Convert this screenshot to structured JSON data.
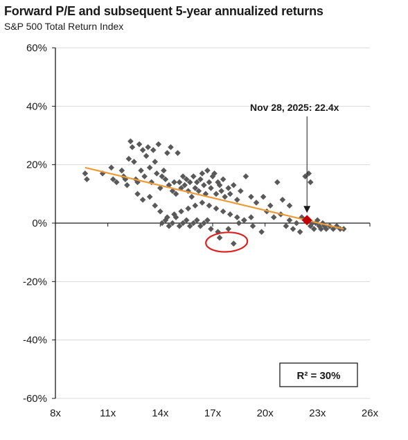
{
  "chart_data": {
    "type": "scatter",
    "title": "Forward P/E and subsequent 5-year annualized returns",
    "subtitle": "S&P 500 Total Return Index",
    "xlabel": "",
    "ylabel": "",
    "xlim": [
      8,
      26
    ],
    "ylim": [
      -60,
      60
    ],
    "x_ticks": [
      8,
      11,
      14,
      17,
      20,
      23,
      26
    ],
    "x_tick_labels": [
      "8x",
      "11x",
      "14x",
      "17x",
      "20x",
      "23x",
      "26x"
    ],
    "y_ticks": [
      60,
      40,
      20,
      0,
      -20,
      -40,
      -60
    ],
    "y_tick_labels": [
      "60%",
      "40%",
      "20%",
      "0%",
      "-20%",
      "-40%",
      "-60%"
    ],
    "grid": "horizontal",
    "series": [
      {
        "marker": "diamond",
        "color": "#595959",
        "points": [
          [
            9.7,
            17
          ],
          [
            9.8,
            15
          ],
          [
            10.7,
            17
          ],
          [
            11.2,
            19
          ],
          [
            11.3,
            15
          ],
          [
            11.5,
            14
          ],
          [
            11.8,
            18
          ],
          [
            11.9,
            16
          ],
          [
            12.0,
            15
          ],
          [
            12.1,
            13
          ],
          [
            12.2,
            22
          ],
          [
            12.3,
            28
          ],
          [
            12.4,
            26
          ],
          [
            12.5,
            21
          ],
          [
            12.6,
            15
          ],
          [
            12.7,
            14
          ],
          [
            12.8,
            27
          ],
          [
            12.9,
            18
          ],
          [
            13.0,
            25
          ],
          [
            13.1,
            16
          ],
          [
            13.2,
            23
          ],
          [
            13.3,
            26
          ],
          [
            13.4,
            19
          ],
          [
            13.5,
            14
          ],
          [
            13.6,
            25
          ],
          [
            13.7,
            21
          ],
          [
            13.8,
            17
          ],
          [
            13.9,
            27
          ],
          [
            14.0,
            12
          ],
          [
            14.1,
            16
          ],
          [
            14.2,
            18
          ],
          [
            14.3,
            15
          ],
          [
            14.4,
            24
          ],
          [
            14.5,
            13
          ],
          [
            14.6,
            26
          ],
          [
            14.7,
            11
          ],
          [
            14.8,
            14
          ],
          [
            14.9,
            10
          ],
          [
            15.0,
            24
          ],
          [
            15.1,
            14
          ],
          [
            15.2,
            12
          ],
          [
            15.3,
            16
          ],
          [
            15.4,
            13
          ],
          [
            15.5,
            15
          ],
          [
            15.6,
            11
          ],
          [
            15.7,
            14
          ],
          [
            15.8,
            9
          ],
          [
            15.9,
            16
          ],
          [
            16.0,
            12
          ],
          [
            16.1,
            14
          ],
          [
            16.2,
            11
          ],
          [
            16.3,
            15
          ],
          [
            16.4,
            17
          ],
          [
            16.5,
            13
          ],
          [
            16.6,
            10
          ],
          [
            16.7,
            18
          ],
          [
            16.8,
            14
          ],
          [
            16.9,
            12
          ],
          [
            17.0,
            16
          ],
          [
            17.1,
            17
          ],
          [
            17.2,
            10
          ],
          [
            17.3,
            14
          ],
          [
            17.4,
            13
          ],
          [
            17.5,
            11
          ],
          [
            17.6,
            15
          ],
          [
            17.7,
            9
          ],
          [
            17.9,
            12
          ],
          [
            18.0,
            10
          ],
          [
            18.2,
            13
          ],
          [
            18.4,
            8
          ],
          [
            18.6,
            11
          ],
          [
            18.9,
            16
          ],
          [
            19.2,
            9
          ],
          [
            19.5,
            7
          ],
          [
            19.9,
            9
          ],
          [
            20.3,
            6
          ],
          [
            20.7,
            14
          ],
          [
            21.0,
            8
          ],
          [
            21.4,
            6
          ],
          [
            12.7,
            10
          ],
          [
            13.0,
            8
          ],
          [
            13.4,
            9
          ],
          [
            13.7,
            6
          ],
          [
            14.0,
            4
          ],
          [
            14.4,
            2
          ],
          [
            14.8,
            3
          ],
          [
            15.2,
            4
          ],
          [
            15.6,
            5
          ],
          [
            16.0,
            6
          ],
          [
            16.4,
            7
          ],
          [
            16.8,
            6
          ],
          [
            17.2,
            5
          ],
          [
            17.6,
            4
          ],
          [
            18.0,
            3
          ],
          [
            18.4,
            2
          ],
          [
            18.8,
            1
          ],
          [
            19.2,
            2
          ],
          [
            14.1,
            0
          ],
          [
            14.3,
            1
          ],
          [
            14.5,
            -1
          ],
          [
            14.7,
            0
          ],
          [
            14.9,
            2
          ],
          [
            15.1,
            -1
          ],
          [
            15.3,
            0
          ],
          [
            15.5,
            1
          ],
          [
            15.7,
            -1
          ],
          [
            15.9,
            0
          ],
          [
            16.1,
            1
          ],
          [
            16.3,
            -1
          ],
          [
            16.5,
            0
          ],
          [
            16.7,
            1
          ],
          [
            16.9,
            -2
          ],
          [
            17.3,
            -3
          ],
          [
            17.4,
            -5
          ],
          [
            17.9,
            -2
          ],
          [
            18.2,
            -7
          ],
          [
            18.5,
            0
          ],
          [
            18.8,
            1
          ],
          [
            19.3,
            -1
          ],
          [
            19.8,
            -3
          ],
          [
            20.1,
            4
          ],
          [
            20.5,
            2
          ],
          [
            20.9,
            3
          ],
          [
            21.2,
            -1
          ],
          [
            21.4,
            1
          ],
          [
            21.6,
            -2
          ],
          [
            21.8,
            0
          ],
          [
            22.0,
            -3
          ],
          [
            22.1,
            2
          ],
          [
            22.3,
            16
          ],
          [
            22.5,
            17
          ],
          [
            22.6,
            14
          ],
          [
            22.4,
            1
          ],
          [
            22.6,
            -1
          ],
          [
            22.7,
            0
          ],
          [
            22.8,
            -2
          ],
          [
            22.9,
            0
          ],
          [
            23.0,
            1
          ],
          [
            23.1,
            -1
          ],
          [
            23.2,
            -2
          ],
          [
            23.3,
            0
          ],
          [
            23.4,
            -1
          ],
          [
            23.5,
            -2
          ],
          [
            23.7,
            -1
          ],
          [
            23.9,
            -2
          ],
          [
            24.1,
            -1
          ],
          [
            24.3,
            -2
          ],
          [
            24.5,
            -2
          ]
        ]
      }
    ],
    "trendline": {
      "color": "#ED9A36",
      "x": [
        9.7,
        24.5
      ],
      "y": [
        19,
        -2
      ]
    },
    "highlight": {
      "x": 22.4,
      "y": 1,
      "color": "#C00000",
      "label": "Nov 28, 2025: 22.4x"
    },
    "annotation_box": {
      "text": "R² = 30%"
    },
    "hand_drawn_circle": {
      "color": "#E02020",
      "center": [
        17.8,
        -6.5
      ]
    }
  }
}
